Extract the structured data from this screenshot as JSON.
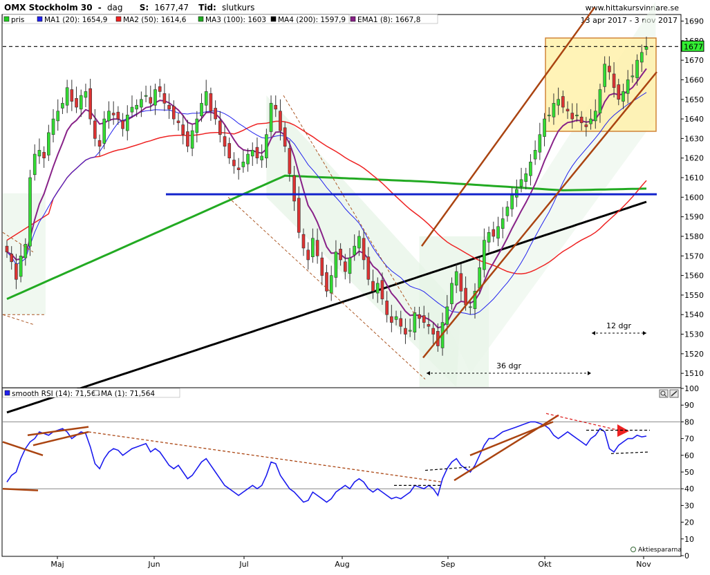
{
  "header": {
    "symbol": "OMX Stockholm 30",
    "sep": "-",
    "period": "dag",
    "s_label": "S:",
    "s_value": "1677,47",
    "tid_label": "Tid:",
    "tid_value": "slutkurs",
    "site": "www.hittakursvinnare.se",
    "daterange": "13 apr 2017 - 3 nov 2017"
  },
  "chart_data": [
    {
      "type": "candlestick",
      "ylim": [
        1503,
        1693
      ],
      "yticks": [
        1510,
        1520,
        1530,
        1540,
        1550,
        1560,
        1570,
        1580,
        1590,
        1600,
        1610,
        1620,
        1630,
        1640,
        1650,
        1660,
        1670,
        1680,
        1690
      ],
      "xticks": [
        "Maj",
        "Jun",
        "Jul",
        "Aug",
        "Sep",
        "Okt",
        "Nov"
      ],
      "last_price_tag": "1677",
      "legend": [
        {
          "label": "pris",
          "color": "#22cc22"
        },
        {
          "label": "MA1 (20): 1654,9",
          "color": "#2222ee"
        },
        {
          "label": "MA2 (50): 1614,6",
          "color": "#ee2222"
        },
        {
          "label": "MA3 (100): 1603",
          "color": "#22aa22"
        },
        {
          "label": "MA4 (200): 1597,9",
          "color": "#000000"
        },
        {
          "label": "EMA1 (8): 1667,8",
          "color": "#882288"
        }
      ],
      "annotations": [
        {
          "text": "36 dgr"
        },
        {
          "text": "12 dgr"
        }
      ],
      "price_closes": [
        1572,
        1567,
        1558,
        1570,
        1576,
        1610,
        1622,
        1624,
        1620,
        1633,
        1640,
        1644,
        1648,
        1656,
        1649,
        1646,
        1652,
        1654,
        1640,
        1630,
        1626,
        1640,
        1644,
        1642,
        1640,
        1635,
        1642,
        1646,
        1647,
        1650,
        1652,
        1648,
        1655,
        1654,
        1648,
        1645,
        1640,
        1638,
        1632,
        1626,
        1634,
        1640,
        1648,
        1654,
        1644,
        1640,
        1632,
        1626,
        1620,
        1616,
        1614,
        1618,
        1622,
        1624,
        1620,
        1621,
        1632,
        1648,
        1645,
        1634,
        1626,
        1612,
        1598,
        1582,
        1574,
        1568,
        1579,
        1570,
        1560,
        1552,
        1560,
        1572,
        1568,
        1562,
        1569,
        1575,
        1580,
        1568,
        1558,
        1552,
        1556,
        1548,
        1540,
        1536,
        1539,
        1534,
        1530,
        1532,
        1541,
        1538,
        1536,
        1534,
        1530,
        1524,
        1536,
        1544,
        1556,
        1562,
        1552,
        1545,
        1544,
        1552,
        1564,
        1578,
        1582,
        1580,
        1585,
        1589,
        1595,
        1601,
        1604,
        1609,
        1612,
        1618,
        1624,
        1632,
        1640,
        1642,
        1648,
        1650,
        1646,
        1644,
        1640,
        1642,
        1638,
        1636,
        1640,
        1644,
        1655,
        1668,
        1664,
        1656,
        1650,
        1654,
        1660,
        1662,
        1670,
        1674,
        1677
      ],
      "rsi_values": [
        44,
        48,
        50,
        58,
        64,
        68,
        70,
        74,
        73,
        72,
        74,
        75,
        76,
        74,
        70,
        72,
        74,
        73,
        65,
        55,
        52,
        58,
        62,
        64,
        63,
        60,
        62,
        64,
        65,
        66,
        67,
        62,
        64,
        62,
        58,
        54,
        52,
        54,
        50,
        46,
        48,
        52,
        56,
        58,
        54,
        50,
        46,
        42,
        40,
        38,
        36,
        38,
        40,
        42,
        40,
        42,
        48,
        56,
        55,
        48,
        44,
        40,
        38,
        35,
        32,
        33,
        38,
        36,
        34,
        32,
        34,
        38,
        40,
        42,
        40,
        44,
        46,
        44,
        40,
        38,
        40,
        38,
        36,
        34,
        35,
        34,
        36,
        38,
        42,
        41,
        40,
        42,
        40,
        36,
        46,
        52,
        56,
        58,
        54,
        52,
        50,
        54,
        60,
        66,
        70,
        70,
        72,
        74,
        75,
        76,
        77,
        78,
        79,
        80,
        80,
        79,
        78,
        76,
        72,
        70,
        72,
        74,
        72,
        70,
        68,
        66,
        70,
        72,
        76,
        74,
        64,
        62,
        66,
        68,
        70,
        70,
        72,
        71,
        71.5
      ],
      "rsi_yticks": [
        0,
        10,
        20,
        30,
        40,
        50,
        60,
        70,
        80,
        90,
        100
      ],
      "rsi_legend": [
        {
          "label": "smooth RSI (14): 71,564",
          "color": "#2222ee"
        },
        {
          "label": "MA (1): 71,564",
          "color": "#ffffff"
        }
      ],
      "rsi_footer": "Aktiespararna"
    }
  ]
}
